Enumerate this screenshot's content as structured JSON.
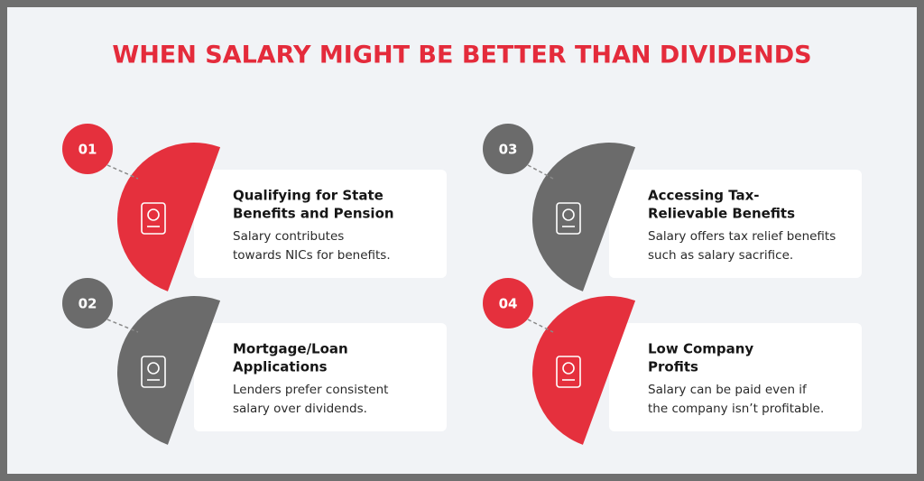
{
  "title": "WHEN SALARY MIGHT BE BETTER THAN DIVIDENDS",
  "items": [
    {
      "number": "01",
      "heading_lines": [
        "Qualifying for State",
        "Benefits and Pension"
      ],
      "description_lines": [
        "Salary contributes",
        "towards NICs for benefits."
      ]
    },
    {
      "number": "02",
      "heading_lines": [
        "Mortgage/Loan",
        "Applications"
      ],
      "description_lines": [
        "Lenders prefer consistent",
        "salary over dividends."
      ]
    },
    {
      "number": "03",
      "heading_lines": [
        "Accessing Tax-",
        "Relievable Benefits"
      ],
      "description_lines": [
        "Salary offers tax relief benefits",
        "such as salary sacrifice."
      ]
    },
    {
      "number": "04",
      "heading_lines": [
        "Low Company",
        "Profits"
      ],
      "description_lines": [
        "Salary can be paid even if",
        "the company isn’t profitable."
      ]
    }
  ]
}
